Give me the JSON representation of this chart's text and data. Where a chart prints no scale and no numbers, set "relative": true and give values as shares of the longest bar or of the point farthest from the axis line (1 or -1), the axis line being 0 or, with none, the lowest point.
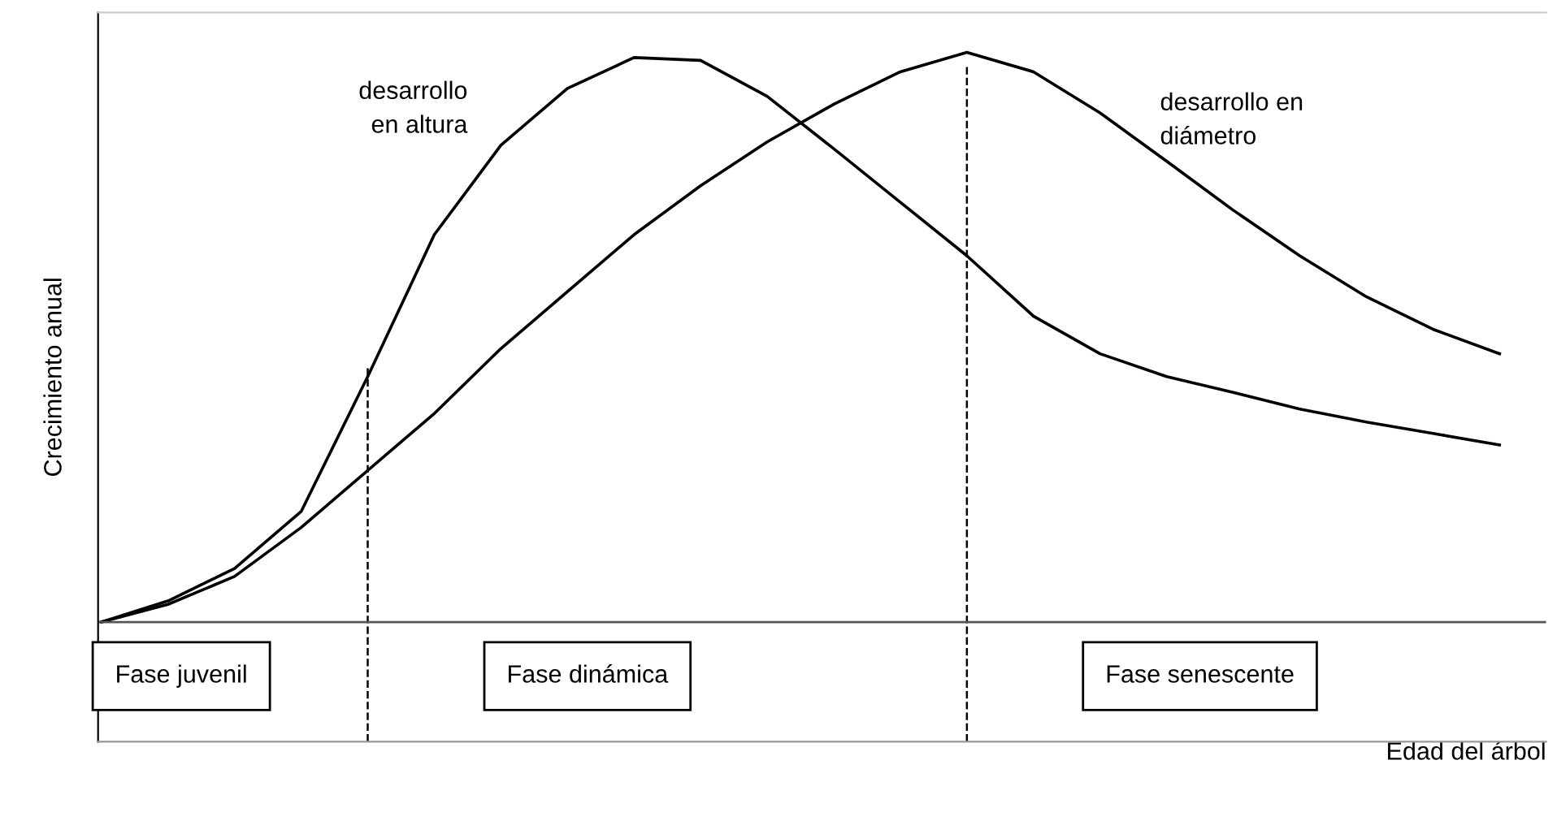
{
  "chart_data": {
    "type": "line",
    "relative": true,
    "xlabel": "Edad del árbol",
    "ylabel": "Crecimiento anual",
    "categories": [
      null,
      null,
      null,
      null,
      null,
      null,
      null,
      null,
      null,
      null,
      null,
      null,
      null,
      null,
      null,
      null,
      null,
      null,
      null,
      null,
      null,
      null
    ],
    "series": [
      {
        "name": "desarrollo\nen altura",
        "color": "#000000",
        "values": [
          0,
          0.037,
          0.094,
          0.194,
          0.431,
          0.68,
          0.837,
          0.937,
          0.991,
          0.986,
          0.923,
          0.831,
          0.737,
          0.643,
          0.537,
          0.471,
          0.431,
          0.403,
          0.374,
          0.351,
          0.331,
          0.311
        ]
      },
      {
        "name": "desarrollo en\ndiámetro",
        "color": "#000000",
        "values": [
          0,
          0.031,
          0.08,
          0.166,
          0.266,
          0.366,
          0.48,
          0.58,
          0.68,
          0.766,
          0.843,
          0.909,
          0.966,
          1.0,
          0.966,
          0.894,
          0.809,
          0.723,
          0.643,
          0.571,
          0.514,
          0.471
        ]
      }
    ],
    "annotations": [
      "Fase juvenil",
      "Fase dinámica",
      "Fase senescente"
    ],
    "marker": "none",
    "line_style": "solid"
  }
}
